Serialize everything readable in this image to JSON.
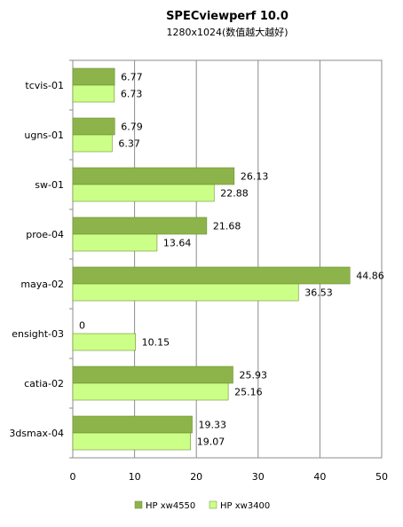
{
  "chart_data": {
    "type": "bar",
    "orientation": "horizontal",
    "title": "SPECviewperf 10.0",
    "subtitle": "1280x1024(数值越大越好)",
    "categories": [
      "tcvis-01",
      "ugns-01",
      "sw-01",
      "proe-04",
      "maya-02",
      "ensight-03",
      "catia-02",
      "3dsmax-04"
    ],
    "series": [
      {
        "name": "HP xw4550",
        "color": "#8db44a",
        "values": [
          6.77,
          6.79,
          26.13,
          21.68,
          44.86,
          0,
          25.93,
          19.33
        ]
      },
      {
        "name": "HP xw3400",
        "color": "#ccff88",
        "values": [
          6.73,
          6.37,
          22.88,
          13.64,
          36.53,
          10.15,
          25.16,
          19.07
        ]
      }
    ],
    "xlim": [
      0,
      50
    ],
    "xticks": [
      0,
      10,
      20,
      30,
      40,
      50
    ],
    "grid": true,
    "legend_position": "bottom"
  }
}
